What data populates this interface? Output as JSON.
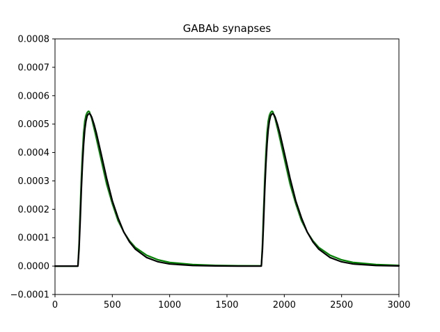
{
  "chart_data": {
    "type": "line",
    "title": "GABAb synapses",
    "xlabel": "",
    "ylabel": "",
    "xlim": [
      0,
      3000
    ],
    "ylim": [
      -0.0001,
      0.0008
    ],
    "x_ticks": [
      {
        "value": 0,
        "label": "0"
      },
      {
        "value": 500,
        "label": "500"
      },
      {
        "value": 1000,
        "label": "1000"
      },
      {
        "value": 1500,
        "label": "1500"
      },
      {
        "value": 2000,
        "label": "2000"
      },
      {
        "value": 2500,
        "label": "2500"
      },
      {
        "value": 3000,
        "label": "3000"
      }
    ],
    "y_ticks": [
      {
        "value": -0.0001,
        "label": "−0.0001"
      },
      {
        "value": 0.0,
        "label": "0.0000"
      },
      {
        "value": 0.0001,
        "label": "0.0001"
      },
      {
        "value": 0.0002,
        "label": "0.0002"
      },
      {
        "value": 0.0003,
        "label": "0.0003"
      },
      {
        "value": 0.0004,
        "label": "0.0004"
      },
      {
        "value": 0.0005,
        "label": "0.0005"
      },
      {
        "value": 0.0006,
        "label": "0.0006"
      },
      {
        "value": 0.0007,
        "label": "0.0007"
      },
      {
        "value": 0.0008,
        "label": "0.0008"
      }
    ],
    "grid": false,
    "legend": "none",
    "series": [
      {
        "color": "#008000",
        "x": [
          0,
          195,
          200,
          210,
          220,
          230,
          240,
          250,
          260,
          270,
          280,
          290,
          295,
          300,
          320,
          350,
          400,
          450,
          500,
          550,
          600,
          650,
          700,
          800,
          900,
          1000,
          1200,
          1400,
          1600,
          1795,
          1800,
          1810,
          1820,
          1830,
          1840,
          1850,
          1860,
          1870,
          1880,
          1890,
          1895,
          1900,
          1920,
          1950,
          2000,
          2050,
          2100,
          2150,
          2200,
          2250,
          2300,
          2400,
          2500,
          2600,
          2800,
          3000
        ],
        "y": [
          0.0,
          0.0,
          0.0,
          8e-05,
          0.0002,
          0.00031,
          0.0004,
          0.00047,
          0.00051,
          0.00053,
          0.00054,
          0.000545,
          0.000545,
          0.000543,
          0.00052,
          0.00047,
          0.00038,
          0.00029,
          0.00022,
          0.00016,
          0.00012,
          8.9e-05,
          6.6e-05,
          3.8e-05,
          2.2e-05,
          1.3e-05,
          5.5e-06,
          2.5e-06,
          1.2e-06,
          1e-06,
          1e-06,
          8e-05,
          0.0002,
          0.00031,
          0.0004,
          0.00047,
          0.00051,
          0.00053,
          0.00054,
          0.000545,
          0.000545,
          0.000543,
          0.00052,
          0.00047,
          0.00038,
          0.00029,
          0.00022,
          0.00016,
          0.00012,
          8.9e-05,
          6.6e-05,
          3.8e-05,
          2.2e-05,
          1.3e-05,
          5.5e-06,
          2.5e-06
        ]
      },
      {
        "color": "#000000",
        "x": [
          0,
          200,
          210,
          220,
          230,
          240,
          250,
          260,
          270,
          280,
          290,
          300,
          310,
          320,
          340,
          360,
          400,
          450,
          500,
          550,
          600,
          650,
          700,
          800,
          900,
          1000,
          1200,
          1400,
          1600,
          1800,
          1810,
          1820,
          1830,
          1840,
          1850,
          1860,
          1870,
          1880,
          1890,
          1900,
          1910,
          1920,
          1940,
          1960,
          2000,
          2050,
          2100,
          2150,
          2200,
          2250,
          2300,
          2400,
          2500,
          2600,
          2800,
          3000
        ],
        "y": [
          0.0,
          0.0,
          6e-05,
          0.00016,
          0.00027,
          0.00036,
          0.00043,
          0.00048,
          0.00051,
          0.000528,
          0.000535,
          0.000537,
          0.000533,
          0.000525,
          0.0005,
          0.00047,
          0.0004,
          0.00031,
          0.00023,
          0.00017,
          0.00012,
          8.5e-05,
          6e-05,
          3e-05,
          1.5e-05,
          7.5e-06,
          2e-06,
          5e-07,
          0.0,
          0.0,
          6e-05,
          0.00016,
          0.00027,
          0.00036,
          0.00043,
          0.00048,
          0.00051,
          0.000528,
          0.000535,
          0.000537,
          0.000533,
          0.000525,
          0.0005,
          0.00047,
          0.0004,
          0.00031,
          0.00023,
          0.00017,
          0.00012,
          8.5e-05,
          6e-05,
          3e-05,
          1.5e-05,
          7.5e-06,
          2e-06,
          5e-07
        ]
      }
    ]
  }
}
